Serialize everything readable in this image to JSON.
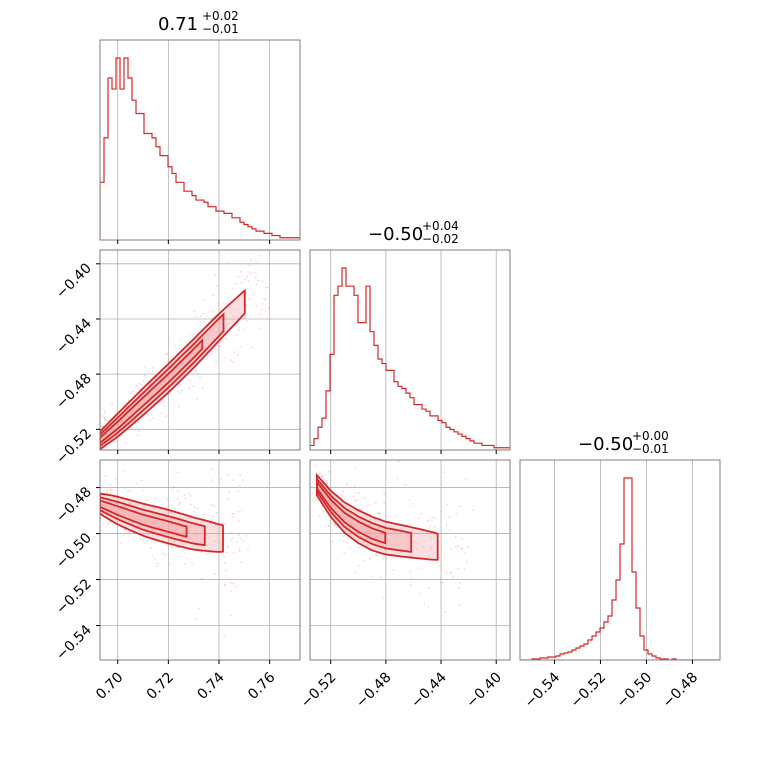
{
  "chart_data": {
    "type": "corner",
    "color": "#d62728",
    "fill_color": "#f4a0a4",
    "grid": true,
    "parameters": [
      {
        "title_value": "0.71",
        "title_plus": "+0.02",
        "title_minus": "−0.01",
        "range": [
          0.693,
          0.772
        ],
        "ticks": [
          0.7,
          0.72,
          0.74,
          0.76
        ],
        "tick_labels": [
          "0.70",
          "0.72",
          "0.74",
          "0.76"
        ],
        "hist": {
          "bin_edges_start": 0.693,
          "bin_width": 0.00158,
          "counts": [
            0.26,
            0.46,
            0.73,
            0.68,
            0.82,
            0.68,
            0.82,
            0.73,
            0.63,
            0.57,
            0.57,
            0.48,
            0.48,
            0.46,
            0.42,
            0.38,
            0.38,
            0.33,
            0.3,
            0.26,
            0.26,
            0.22,
            0.22,
            0.2,
            0.18,
            0.18,
            0.17,
            0.15,
            0.15,
            0.13,
            0.13,
            0.12,
            0.12,
            0.1,
            0.1,
            0.08,
            0.07,
            0.06,
            0.05,
            0.04,
            0.04,
            0.03,
            0.03,
            0.02,
            0.02,
            0.01,
            0.01,
            0.01,
            0.01,
            0.01
          ]
        }
      },
      {
        "title_value": "−0.50",
        "title_plus": "+0.04",
        "title_minus": "−0.02",
        "range": [
          -0.535,
          -0.39
        ],
        "ticks": [
          -0.52,
          -0.48,
          -0.44,
          -0.4
        ],
        "tick_labels": [
          "−0.52",
          "−0.48",
          "−0.44",
          "−0.40"
        ],
        "hist": {
          "bin_edges_start": -0.535,
          "bin_width": 0.0029,
          "counts": [
            0.02,
            0.05,
            0.1,
            0.14,
            0.26,
            0.42,
            0.68,
            0.72,
            0.8,
            0.72,
            0.72,
            0.68,
            0.56,
            0.56,
            0.72,
            0.52,
            0.46,
            0.4,
            0.38,
            0.35,
            0.35,
            0.3,
            0.28,
            0.27,
            0.25,
            0.23,
            0.2,
            0.2,
            0.18,
            0.17,
            0.15,
            0.15,
            0.13,
            0.12,
            0.1,
            0.09,
            0.08,
            0.07,
            0.06,
            0.05,
            0.04,
            0.03,
            0.03,
            0.02,
            0.02,
            0.02,
            0.01,
            0.01,
            0.01,
            0.01
          ]
        }
      },
      {
        "title_value": "−0.50",
        "title_plus": "+0.00",
        "title_minus": "−0.01",
        "range": [
          -0.555,
          -0.468
        ],
        "ticks": [
          -0.54,
          -0.52,
          -0.5,
          -0.48
        ],
        "tick_labels": [
          "−0.54",
          "−0.52",
          "−0.50",
          "−0.48"
        ],
        "hist": {
          "bin_edges_start": -0.555,
          "bin_width": 0.00174,
          "counts": [
            0,
            0,
            0,
            0.005,
            0.005,
            0.01,
            0.01,
            0.015,
            0.015,
            0.02,
            0.03,
            0.035,
            0.04,
            0.05,
            0.06,
            0.07,
            0.08,
            0.1,
            0.12,
            0.14,
            0.16,
            0.19,
            0.22,
            0.3,
            0.4,
            0.58,
            0.91,
            0.91,
            0.44,
            0.26,
            0.12,
            0.05,
            0.03,
            0.02,
            0.01,
            0.005,
            0.005,
            0,
            0.005,
            0,
            0,
            0,
            0,
            0,
            0,
            0,
            0,
            0,
            0,
            0
          ]
        }
      }
    ],
    "pairs": [
      {
        "x_param": 0,
        "y_param": 1,
        "ridge": [
          [
            0.693,
            -0.528
          ],
          [
            0.7,
            -0.517
          ],
          [
            0.71,
            -0.5
          ],
          [
            0.72,
            -0.483
          ],
          [
            0.73,
            -0.465
          ],
          [
            0.74,
            -0.446
          ],
          [
            0.75,
            -0.428
          ],
          [
            0.76,
            -0.408
          ]
        ],
        "contours": [
          {
            "level": 0.39,
            "width": 0.0035,
            "alpha": 0.9
          },
          {
            "level": 0.86,
            "width": 0.0075,
            "alpha": 0.45
          },
          {
            "level": 0.99,
            "width": 0.0115,
            "alpha": 0.2
          }
        ]
      },
      {
        "x_param": 0,
        "y_param": 2,
        "ridge": [
          [
            0.693,
            -0.487
          ],
          [
            0.7,
            -0.49
          ],
          [
            0.71,
            -0.494
          ],
          [
            0.72,
            -0.497
          ],
          [
            0.73,
            -0.5
          ],
          [
            0.74,
            -0.502
          ],
          [
            0.75,
            -0.503
          ]
        ],
        "contours": [
          {
            "level": 0.39,
            "width": 0.0025,
            "alpha": 0.9
          },
          {
            "level": 0.86,
            "width": 0.005,
            "alpha": 0.45
          },
          {
            "level": 0.99,
            "width": 0.008,
            "alpha": 0.2
          }
        ]
      },
      {
        "x_param": 1,
        "y_param": 2,
        "ridge": [
          [
            -0.53,
            -0.479
          ],
          [
            -0.52,
            -0.487
          ],
          [
            -0.51,
            -0.493
          ],
          [
            -0.5,
            -0.497
          ],
          [
            -0.49,
            -0.5
          ],
          [
            -0.48,
            -0.502
          ],
          [
            -0.46,
            -0.504
          ],
          [
            -0.44,
            -0.506
          ],
          [
            -0.42,
            -0.508
          ]
        ],
        "contours": [
          {
            "level": 0.39,
            "width": 0.0025,
            "alpha": 0.9
          },
          {
            "level": 0.86,
            "width": 0.005,
            "alpha": 0.45
          },
          {
            "level": 0.99,
            "width": 0.008,
            "alpha": 0.2
          }
        ]
      }
    ]
  }
}
